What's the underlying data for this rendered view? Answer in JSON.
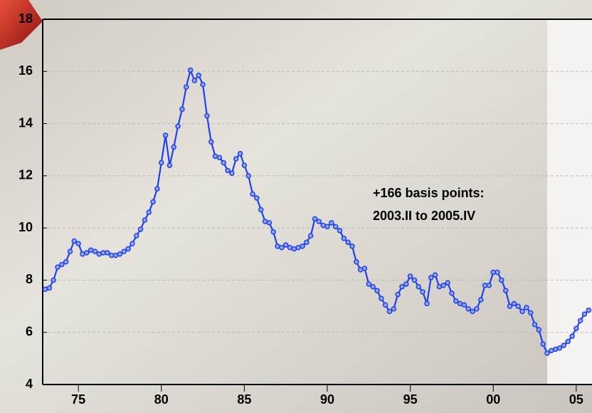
{
  "chart_data": {
    "type": "line",
    "annotation": [
      "+166 basis points:",
      "2003.II to 2005.IV"
    ],
    "x": [
      1973,
      1973.25,
      1973.5,
      1973.75,
      1974,
      1974.25,
      1974.5,
      1974.75,
      1975,
      1975.25,
      1975.5,
      1975.75,
      1976,
      1976.25,
      1976.5,
      1976.75,
      1977,
      1977.25,
      1977.5,
      1977.75,
      1978,
      1978.25,
      1978.5,
      1978.75,
      1979,
      1979.25,
      1979.5,
      1979.75,
      1980,
      1980.25,
      1980.5,
      1980.75,
      1981,
      1981.25,
      1981.5,
      1981.75,
      1982,
      1982.25,
      1982.5,
      1982.75,
      1983,
      1983.25,
      1983.5,
      1983.75,
      1984,
      1984.25,
      1984.5,
      1984.75,
      1985,
      1985.25,
      1985.5,
      1985.75,
      1986,
      1986.25,
      1986.5,
      1986.75,
      1987,
      1987.25,
      1987.5,
      1987.75,
      1988,
      1988.25,
      1988.5,
      1988.75,
      1989,
      1989.25,
      1989.5,
      1989.75,
      1990,
      1990.25,
      1990.5,
      1990.75,
      1991,
      1991.25,
      1991.5,
      1991.75,
      1992,
      1992.25,
      1992.5,
      1992.75,
      1993,
      1993.25,
      1993.5,
      1993.75,
      1994,
      1994.25,
      1994.5,
      1994.75,
      1995,
      1995.25,
      1995.5,
      1995.75,
      1996,
      1996.25,
      1996.5,
      1996.75,
      1997,
      1997.25,
      1997.5,
      1997.75,
      1998,
      1998.25,
      1998.5,
      1998.75,
      1999,
      1999.25,
      1999.5,
      1999.75,
      2000,
      2000.25,
      2000.5,
      2000.75,
      2001,
      2001.25,
      2001.5,
      2001.75,
      2002,
      2002.25,
      2002.5,
      2002.75,
      2003,
      2003.25,
      2003.5,
      2003.75,
      2004,
      2004.25,
      2004.5,
      2004.75,
      2005,
      2005.25,
      2005.5,
      2005.75
    ],
    "values": [
      7.65,
      7.7,
      8.0,
      8.5,
      8.6,
      8.7,
      9.1,
      9.5,
      9.4,
      9.0,
      9.05,
      9.15,
      9.1,
      9.0,
      9.05,
      9.05,
      8.95,
      8.95,
      9.0,
      9.1,
      9.2,
      9.4,
      9.7,
      9.95,
      10.3,
      10.6,
      11.0,
      11.5,
      12.5,
      13.55,
      12.4,
      13.1,
      13.9,
      14.55,
      15.4,
      16.05,
      15.65,
      15.85,
      15.5,
      14.3,
      13.3,
      12.75,
      12.7,
      12.5,
      12.2,
      12.1,
      12.65,
      12.85,
      12.4,
      12.0,
      11.3,
      11.15,
      10.7,
      10.25,
      10.2,
      9.85,
      9.3,
      9.25,
      9.35,
      9.25,
      9.2,
      9.25,
      9.3,
      9.45,
      9.7,
      10.35,
      10.25,
      10.1,
      10.05,
      10.2,
      10.05,
      9.9,
      9.6,
      9.45,
      9.3,
      8.7,
      8.4,
      8.45,
      7.85,
      7.75,
      7.6,
      7.3,
      7.05,
      6.8,
      6.9,
      7.45,
      7.75,
      7.85,
      8.15,
      8.0,
      7.75,
      7.55,
      7.1,
      8.1,
      8.2,
      7.75,
      7.8,
      7.9,
      7.5,
      7.2,
      7.1,
      7.05,
      6.9,
      6.8,
      6.9,
      7.25,
      7.8,
      7.8,
      8.3,
      8.3,
      8.0,
      7.6,
      7.0,
      7.1,
      7.0,
      6.8,
      6.95,
      6.75,
      6.3,
      6.1,
      5.55,
      5.2,
      5.3,
      5.35,
      5.4,
      5.5,
      5.65,
      5.85,
      6.15,
      6.45,
      6.7,
      6.85
    ],
    "color": "#2040e8",
    "marker_fill": "#8fa8f0",
    "shaded_range": [
      2003.25,
      2005.95
    ],
    "xlim": [
      1972.85,
      2005.95
    ],
    "xticks": [
      {
        "value": 1975,
        "label": "75"
      },
      {
        "value": 1980,
        "label": "80"
      },
      {
        "value": 1985,
        "label": "85"
      },
      {
        "value": 1990,
        "label": "90"
      },
      {
        "value": 1995,
        "label": "95"
      },
      {
        "value": 2000,
        "label": "00"
      },
      {
        "value": 2005,
        "label": "05"
      }
    ],
    "ylim": [
      4,
      18
    ],
    "yticks": [
      4,
      6,
      8,
      10,
      12,
      14,
      16,
      18
    ],
    "grid": true
  }
}
